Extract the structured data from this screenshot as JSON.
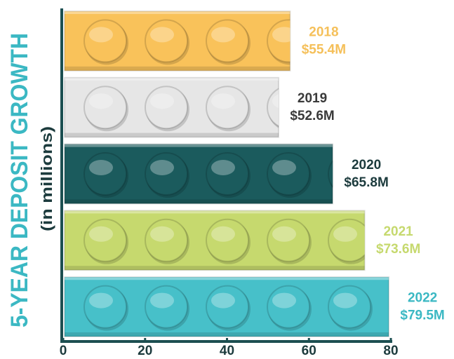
{
  "chart_data": {
    "type": "bar",
    "orientation": "horizontal",
    "title": "5-YEAR DEPOSIT GROWTH",
    "subtitle": "(in millions)",
    "categories": [
      "2018",
      "2019",
      "2020",
      "2021",
      "2022"
    ],
    "values": [
      55.4,
      52.6,
      65.8,
      73.6,
      79.5
    ],
    "value_labels": [
      "$55.4M",
      "$52.6M",
      "$65.8M",
      "$73.6M",
      "$79.5M"
    ],
    "colors": [
      "#f9c25a",
      "#e6e6e6",
      "#1b5b5d",
      "#c6d96e",
      "#47c0c9"
    ],
    "label_colors": [
      "#f5c05a",
      "#3a3a3a",
      "#1c3b3d",
      "#c6d96e",
      "#3bb8c3"
    ],
    "title_color": "#3bb8c3",
    "xlim": [
      0,
      80
    ],
    "xticks": [
      0,
      20,
      40,
      60,
      80
    ],
    "grid": false
  }
}
